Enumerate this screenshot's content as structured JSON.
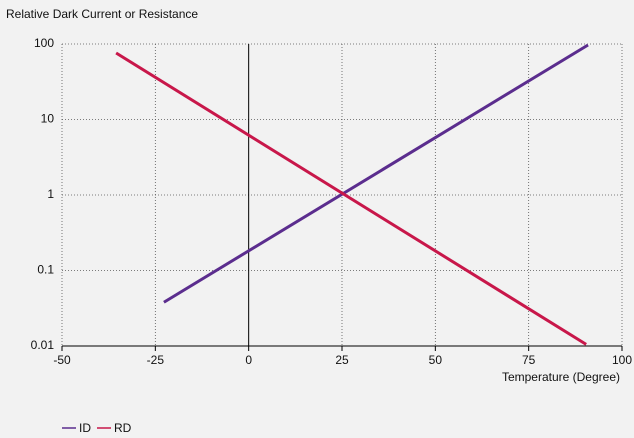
{
  "chart_data": {
    "type": "line",
    "title": "Relative Dark Current or Resistance",
    "x_label": "Temperature (Degree)",
    "xlim": [
      -50,
      100
    ],
    "xticks": [
      -50,
      -25,
      0,
      25,
      50,
      75,
      100
    ],
    "ylim": [
      0.01,
      100
    ],
    "yticks": [
      100,
      10,
      1,
      0.1,
      0.01
    ],
    "log_y": true,
    "grid": true,
    "legend": "bottom-left",
    "series": [
      {
        "name": "ID",
        "color": "#5b2d8e",
        "x": [
          -22.7,
          90.9
        ],
        "values": [
          0.038,
          97
        ]
      },
      {
        "name": "RD",
        "color": "#c8174a",
        "x": [
          -35.5,
          90.4
        ],
        "values": [
          76,
          0.0105
        ]
      }
    ]
  }
}
